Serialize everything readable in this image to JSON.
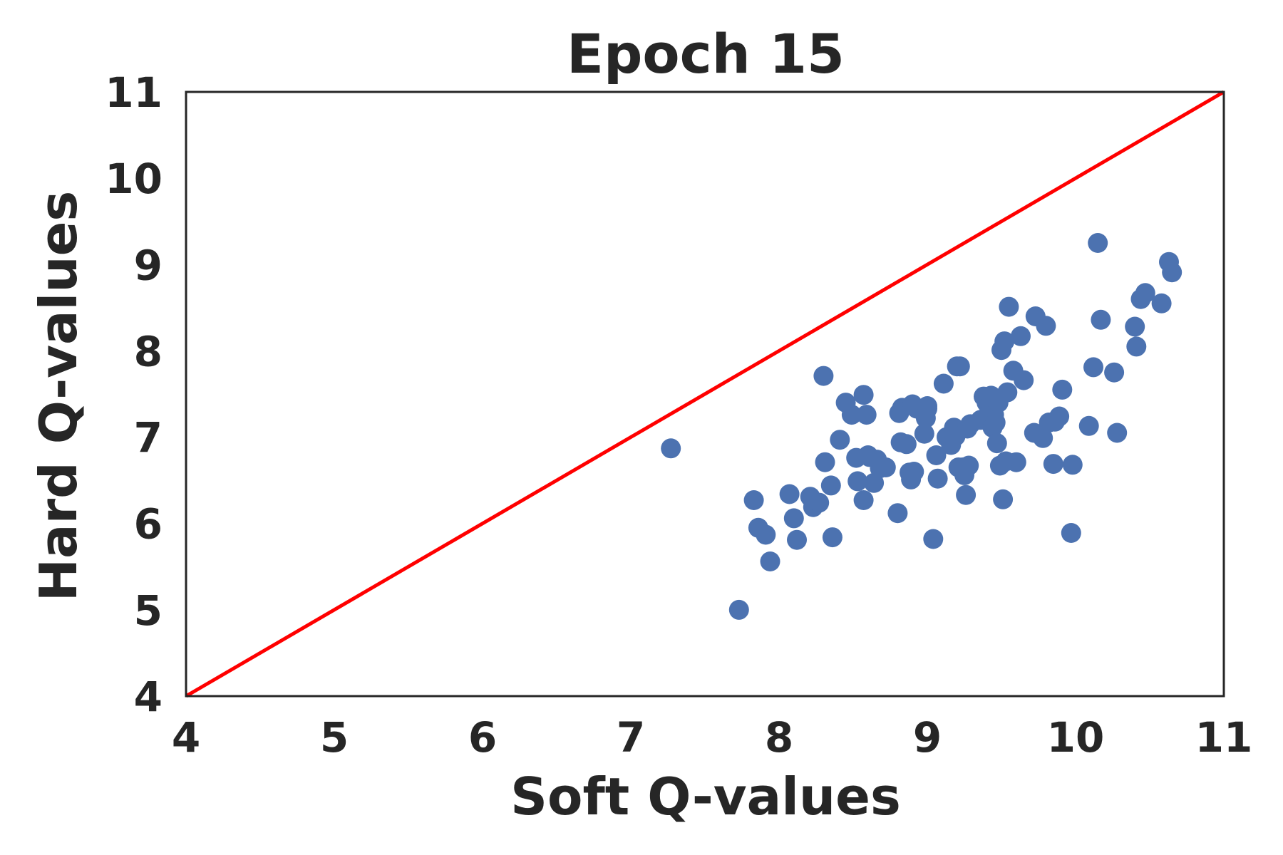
{
  "chart_data": {
    "type": "scatter",
    "title": "Epoch 15",
    "xlabel": "Soft Q-values",
    "ylabel": "Hard Q-values",
    "xlim": [
      4,
      11
    ],
    "ylim": [
      4,
      11
    ],
    "xticks": [
      "4",
      "5",
      "6",
      "7",
      "8",
      "9",
      "10",
      "11"
    ],
    "yticks": [
      "4",
      "5",
      "6",
      "7",
      "8",
      "9",
      "10",
      "11"
    ],
    "grid": false,
    "colors": {
      "points": "#4c72b0",
      "reference_line": "#ff0000",
      "text": "#262626",
      "frame": "#262626"
    },
    "reference_line": {
      "name": "y = x",
      "x": [
        4,
        11
      ],
      "y": [
        4,
        11
      ]
    },
    "series": [
      {
        "x": [
          7.27,
          7.73,
          7.83,
          7.86,
          7.91,
          7.94,
          8.07,
          8.1,
          8.12,
          8.21,
          8.23,
          8.27,
          8.3,
          8.31,
          8.35,
          8.36,
          8.41,
          8.45,
          8.49,
          8.52,
          8.53,
          8.57,
          8.57,
          8.59,
          8.6,
          8.61,
          8.64,
          8.66,
          8.68,
          8.72,
          8.8,
          8.81,
          8.82,
          8.83,
          8.86,
          8.88,
          8.89,
          8.9,
          8.91,
          8.93,
          8.98,
          8.99,
          9.0,
          9.0,
          9.04,
          9.06,
          9.07,
          9.11,
          9.13,
          9.16,
          9.18,
          9.19,
          9.2,
          9.21,
          9.22,
          9.24,
          9.25,
          9.26,
          9.27,
          9.28,
          9.29,
          9.36,
          9.38,
          9.4,
          9.41,
          9.43,
          9.44,
          9.45,
          9.46,
          9.47,
          9.48,
          9.49,
          9.5,
          9.51,
          9.52,
          9.53,
          9.54,
          9.55,
          9.58,
          9.6,
          9.63,
          9.65,
          9.72,
          9.73,
          9.78,
          9.8,
          9.82,
          9.85,
          9.86,
          9.89,
          9.91,
          9.97,
          9.98,
          10.09,
          10.12,
          10.15,
          10.17,
          10.26,
          10.28,
          10.4,
          10.41,
          10.44,
          10.47,
          10.58,
          10.63,
          10.65
        ],
        "y": [
          6.87,
          5.0,
          6.27,
          5.95,
          5.87,
          5.56,
          6.34,
          6.06,
          5.81,
          6.31,
          6.19,
          6.24,
          7.71,
          6.71,
          6.44,
          5.84,
          6.97,
          7.4,
          7.26,
          6.76,
          6.49,
          6.27,
          7.49,
          7.26,
          6.79,
          6.77,
          6.47,
          6.74,
          6.64,
          6.65,
          6.12,
          7.28,
          6.94,
          7.34,
          6.92,
          6.59,
          6.51,
          7.38,
          6.6,
          7.33,
          7.04,
          7.22,
          7.33,
          7.36,
          5.82,
          6.79,
          6.52,
          7.62,
          7.0,
          6.91,
          7.11,
          7.01,
          7.82,
          6.65,
          7.82,
          6.65,
          6.56,
          6.33,
          7.1,
          6.67,
          7.15,
          7.2,
          7.47,
          7.4,
          7.26,
          7.48,
          7.11,
          7.26,
          7.17,
          6.93,
          7.4,
          6.67,
          8.01,
          6.28,
          8.11,
          6.72,
          7.52,
          8.51,
          7.77,
          6.71,
          8.17,
          7.66,
          7.05,
          8.4,
          6.99,
          8.29,
          7.17,
          6.69,
          7.18,
          7.24,
          7.55,
          5.89,
          6.68,
          7.13,
          7.81,
          9.25,
          8.36,
          7.75,
          7.05,
          8.28,
          8.05,
          8.6,
          8.67,
          8.55,
          9.03,
          8.91
        ]
      }
    ]
  }
}
